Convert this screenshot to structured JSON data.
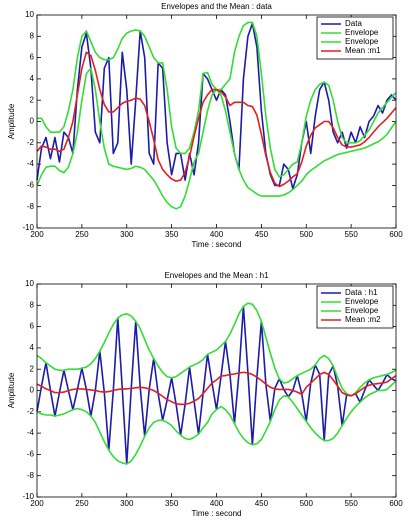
{
  "chart_data": [
    {
      "type": "line",
      "title": "Envelopes and the Mean : data",
      "xlabel": "Time : second",
      "ylabel": "Amplitude",
      "xlim": [
        200,
        600
      ],
      "xticks": [
        200,
        250,
        300,
        350,
        400,
        450,
        500,
        550,
        600
      ],
      "ylim": [
        -10,
        10
      ],
      "yticks": [
        -10,
        -8,
        -6,
        -4,
        -2,
        0,
        2,
        4,
        6,
        8,
        10
      ],
      "legend": "upper right",
      "x": [
        200,
        205,
        210,
        215,
        220,
        225,
        230,
        235,
        240,
        245,
        250,
        255,
        260,
        265,
        270,
        275,
        280,
        285,
        290,
        295,
        300,
        305,
        310,
        315,
        320,
        325,
        330,
        335,
        340,
        345,
        350,
        355,
        360,
        365,
        370,
        375,
        380,
        385,
        390,
        395,
        400,
        405,
        410,
        415,
        420,
        425,
        430,
        435,
        440,
        445,
        450,
        455,
        460,
        465,
        470,
        475,
        480,
        485,
        490,
        495,
        500,
        505,
        510,
        515,
        520,
        525,
        530,
        535,
        540,
        545,
        550,
        555,
        560,
        565,
        570,
        575,
        580,
        585,
        590,
        595,
        600
      ],
      "series": [
        {
          "name": "Data",
          "color": "#1c1ca8",
          "values": [
            -5.5,
            -2.5,
            -1.5,
            -3.5,
            -1.5,
            -3.8,
            -1,
            -1.5,
            -3,
            3,
            7,
            8.3,
            5,
            -1,
            -2,
            5,
            6,
            -3,
            -2,
            6.5,
            3,
            -4,
            2,
            8.5,
            6,
            -3,
            -4,
            5.5,
            5,
            -2,
            -5,
            -3,
            -3,
            -5.5,
            -3,
            -5,
            -2,
            4.5,
            4,
            3,
            2,
            3,
            2.5,
            0,
            -3,
            -4.5,
            4,
            8,
            9.2,
            7,
            1,
            -3,
            -5,
            -6,
            -6,
            -4,
            -4.5,
            -6.3,
            -5,
            -2,
            0,
            -3,
            0.5,
            3,
            3.7,
            2,
            -1,
            -2,
            -1,
            -2.5,
            -1,
            -2,
            -0.5,
            -1.5,
            0,
            0.5,
            1.5,
            0.8,
            2,
            2.5,
            2
          ]
        },
        {
          "name": "Envelope",
          "color": "#33dd33",
          "values": [
            0.3,
            0.3,
            -0.5,
            -1,
            -1,
            -1,
            -0.5,
            1,
            3,
            6,
            8,
            8.5,
            7.5,
            6.5,
            6,
            5.8,
            5.8,
            6,
            6.8,
            7.8,
            8.3,
            8.5,
            8.6,
            8.5,
            8,
            7,
            6,
            5.5,
            5.5,
            3,
            -0.5,
            -2.5,
            -3,
            -3,
            -2.5,
            -1,
            1,
            4.5,
            4.6,
            3.5,
            3,
            3,
            3.5,
            4,
            6.5,
            8,
            9,
            9.3,
            9.3,
            8,
            4.5,
            0.5,
            -2.5,
            -4.5,
            -5.2,
            -5,
            -4.5,
            -4,
            -3.8,
            -2,
            0.5,
            2,
            3,
            3.5,
            3.7,
            3.4,
            2,
            0,
            -1.5,
            -2,
            -2,
            -2,
            -1.8,
            -1.3,
            -0.8,
            0,
            0.8,
            1.3,
            1.8,
            2.3,
            2.7
          ]
        },
        {
          "name": "Envelope",
          "color": "#33dd33",
          "values": [
            -6,
            -5,
            -4.3,
            -4.2,
            -4.2,
            -4.6,
            -4.8,
            -4.3,
            -3,
            -1,
            2,
            4.5,
            5,
            3,
            0,
            -2.5,
            -4,
            -4.2,
            -4.3,
            -4.4,
            -4.5,
            -4.4,
            -4.2,
            -4.3,
            -4.5,
            -5,
            -5.5,
            -6.2,
            -7,
            -7.6,
            -8,
            -8.2,
            -8,
            -7,
            -5.5,
            -3.8,
            -3,
            -1,
            1,
            2.5,
            3,
            2.5,
            1,
            -1,
            -3,
            -4.5,
            -5.5,
            -6.2,
            -6.5,
            -6.8,
            -7,
            -7,
            -7,
            -7,
            -7,
            -6.9,
            -6.7,
            -6.4,
            -6,
            -5.6,
            -5,
            -4.6,
            -4.3,
            -4,
            -3.7,
            -3.5,
            -3.3,
            -3.1,
            -3,
            -2.9,
            -2.8,
            -2.7,
            -2.6,
            -2.5,
            -2.3,
            -2.1,
            -1.9,
            -1.6,
            -1.2,
            -0.6,
            0
          ]
        },
        {
          "name": "Mean :m1",
          "color": "#e02020",
          "values": [
            -2.8,
            -2.3,
            -2.4,
            -2.6,
            -2.6,
            -2.8,
            -2.6,
            -1.5,
            0,
            2.5,
            5,
            6.5,
            6.2,
            4.8,
            3,
            1.6,
            0.9,
            0.9,
            1.3,
            1.7,
            1.9,
            2,
            2.2,
            2.1,
            1.5,
            0,
            -1.7,
            -3.6,
            -4.5,
            -5,
            -5.4,
            -5.6,
            -5.5,
            -4.8,
            -3.3,
            -1.4,
            0.3,
            1.8,
            2.5,
            3,
            3,
            2.8,
            2.3,
            1.5,
            1.8,
            1.8,
            1.8,
            1.5,
            1.4,
            0.6,
            -1.2,
            -3.2,
            -4.8,
            -5.8,
            -6.1,
            -5.9,
            -5.6,
            -5.2,
            -4.9,
            -3.8,
            -2.3,
            -1.3,
            -0.6,
            -0.3,
            0,
            0,
            -0.6,
            -1.5,
            -2.2,
            -2.4,
            -2.4,
            -2.3,
            -2.2,
            -1.9,
            -1.5,
            -1,
            -0.5,
            -0.1,
            0.3,
            0.8,
            1.3
          ]
        }
      ]
    },
    {
      "type": "line",
      "title": "Envelopes and the Mean : h1",
      "xlabel": "Time : second",
      "ylabel": "Amplitude",
      "xlim": [
        200,
        600
      ],
      "xticks": [
        200,
        250,
        300,
        350,
        400,
        450,
        500,
        550,
        600
      ],
      "ylim": [
        -10,
        10
      ],
      "yticks": [
        -10,
        -8,
        -6,
        -4,
        -2,
        0,
        2,
        4,
        6,
        8,
        10
      ],
      "legend": "upper right",
      "x": [
        200,
        205,
        210,
        215,
        220,
        225,
        230,
        235,
        240,
        245,
        250,
        255,
        260,
        265,
        270,
        275,
        280,
        285,
        290,
        295,
        300,
        305,
        310,
        315,
        320,
        325,
        330,
        335,
        340,
        345,
        350,
        355,
        360,
        365,
        370,
        375,
        380,
        385,
        390,
        395,
        400,
        405,
        410,
        415,
        420,
        425,
        430,
        435,
        440,
        445,
        450,
        455,
        460,
        465,
        470,
        475,
        480,
        485,
        490,
        495,
        500,
        505,
        510,
        515,
        520,
        525,
        530,
        535,
        540,
        545,
        550,
        555,
        560,
        565,
        570,
        575,
        580,
        585,
        590,
        595,
        600
      ],
      "series": [
        {
          "name": "Data : h1",
          "color": "#1c1ca8",
          "values": [
            -2,
            0.4,
            2.6,
            0,
            -2.4,
            -0.2,
            1.9,
            0,
            -1.8,
            0.1,
            2.1,
            0.1,
            -2.4,
            0,
            3.7,
            -0.2,
            -5.6,
            0,
            6.8,
            0.2,
            -6.9,
            0.2,
            6.5,
            0.3,
            -4.3,
            0.1,
            3,
            -0.3,
            -2.8,
            -0.9,
            1.2,
            -1.3,
            -4.2,
            -1.3,
            2.2,
            -1,
            -4.1,
            -0.3,
            3.4,
            0.7,
            -1.8,
            1.3,
            4.6,
            1.5,
            -3.1,
            1.6,
            7.9,
            1.7,
            -5.1,
            1.2,
            6.5,
            0.6,
            -2.9,
            0.2,
            1.1,
            0.1,
            -0.6,
            0,
            1.4,
            -0.3,
            -2.9,
            0.7,
            2.4,
            1.5,
            -4.7,
            1.5,
            2.3,
            0.4,
            -3.3,
            -0.4,
            -0.5,
            -0.3,
            -1.1,
            0,
            1,
            0.5,
            0,
            0.7,
            1.5,
            1.1,
            0.9
          ]
        },
        {
          "name": "Envelope",
          "color": "#33dd33",
          "values": [
            3.3,
            3,
            2.6,
            2.3,
            2,
            1.9,
            1.9,
            2,
            2,
            2,
            2.1,
            2.2,
            2.5,
            3,
            3.7,
            4.5,
            5.4,
            6.2,
            6.8,
            7.1,
            7.2,
            7,
            6.5,
            5.8,
            4.8,
            3.8,
            3,
            2.3,
            1.7,
            1.3,
            1.2,
            1.3,
            1.6,
            1.9,
            2.2,
            2.4,
            2.6,
            2.9,
            3.4,
            3.6,
            3.8,
            4.2,
            4.6,
            5.3,
            6.2,
            7.2,
            7.9,
            8.2,
            8.1,
            7.5,
            6.5,
            5,
            3.5,
            2.1,
            1.1,
            0.7,
            0.8,
            1.1,
            1.4,
            1.6,
            1.8,
            2,
            2.4,
            3,
            3.3,
            3,
            2.3,
            1.2,
            0.2,
            -0.3,
            -0.5,
            -0.2,
            0.3,
            0.7,
            1,
            1.2,
            1.3,
            1.4,
            1.5,
            1.7,
            1.9
          ]
        },
        {
          "name": "Envelope",
          "color": "#33dd33",
          "values": [
            -2,
            -2.2,
            -2.3,
            -2.3,
            -2.4,
            -2.3,
            -2.2,
            -2,
            -1.8,
            -1.7,
            -1.8,
            -2,
            -2.4,
            -3,
            -3.9,
            -4.8,
            -5.6,
            -6.2,
            -6.6,
            -6.8,
            -6.9,
            -6.6,
            -6,
            -5.2,
            -4.3,
            -3.5,
            -3,
            -2.8,
            -2.8,
            -3,
            -3.3,
            -3.8,
            -4.2,
            -4.5,
            -4.6,
            -4.4,
            -4.1,
            -3.5,
            -3,
            -2.2,
            -1.8,
            -1.5,
            -1.8,
            -2.3,
            -3.1,
            -3.9,
            -4.5,
            -4.9,
            -5.1,
            -5,
            -4.6,
            -3.8,
            -2.9,
            -1.8,
            -0.9,
            -0.5,
            -0.6,
            -1.1,
            -1.7,
            -2.3,
            -2.9,
            -3.5,
            -4,
            -4.4,
            -4.7,
            -4.7,
            -4.5,
            -4,
            -3.3,
            -2.6,
            -2,
            -1.5,
            -1.1,
            -0.7,
            -0.4,
            -0.2,
            0,
            0,
            0.1,
            0.5,
            0.9
          ]
        },
        {
          "name": "Mean :m2",
          "color": "#e02020",
          "values": [
            0.6,
            0.4,
            0.15,
            0,
            -0.2,
            -0.2,
            -0.15,
            0,
            0.1,
            0.15,
            0.15,
            0.1,
            0.05,
            0,
            -0.1,
            -0.15,
            -0.1,
            0,
            0.1,
            0.15,
            0.15,
            0.2,
            0.25,
            0.3,
            0.25,
            0.15,
            0,
            -0.25,
            -0.55,
            -0.85,
            -1.05,
            -1.25,
            -1.3,
            -1.3,
            -1.2,
            -1,
            -0.75,
            -0.3,
            0.2,
            0.7,
            1,
            1.35,
            1.4,
            1.5,
            1.55,
            1.65,
            1.7,
            1.65,
            1.5,
            1.25,
            0.95,
            0.6,
            0.3,
            0.15,
            0.1,
            0.1,
            0.1,
            0,
            -0.15,
            -0.35,
            0.3,
            0.7,
            1.1,
            1.5,
            1.7,
            1.5,
            1,
            0.4,
            -0.2,
            -0.4,
            -0.5,
            -0.3,
            0,
            0.3,
            0.5,
            0.6,
            0.65,
            0.7,
            0.8,
            1.1,
            1.4
          ]
        }
      ]
    }
  ]
}
